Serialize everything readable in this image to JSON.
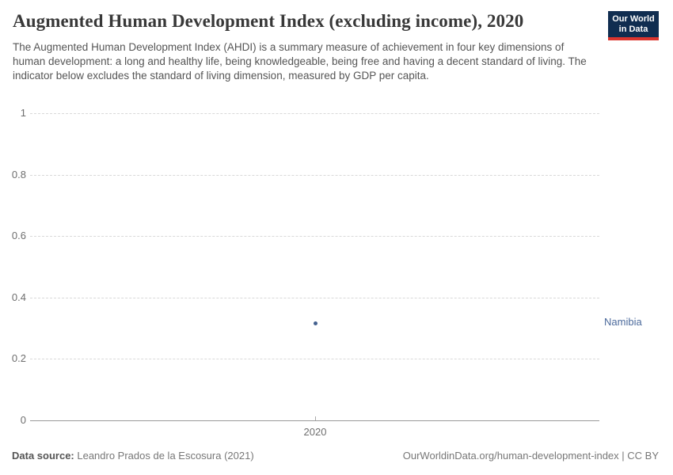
{
  "header": {
    "title": "Augmented Human Development Index (excluding income), 2020",
    "subtitle": "The Augmented Human Development Index (AHDI) is a summary measure of achievement in four key dimensions of human development: a long and healthy life, being knowledgeable, being free and having a decent standard of living. The indicator below excludes the standard of living dimension, measured by GDP per capita.",
    "logo": {
      "line1": "Our World",
      "line2": "in Data"
    }
  },
  "chart_data": {
    "type": "scatter",
    "title": "Augmented Human Development Index (excluding income), 2020",
    "x": [
      2020
    ],
    "x_ticks": [
      "2020"
    ],
    "y_ticks": [
      "1",
      "0.8",
      "0.6",
      "0.4",
      "0.2",
      "0"
    ],
    "ylim": [
      0,
      1
    ],
    "xlabel": "",
    "ylabel": "",
    "grid": "horizontal-dashed",
    "legend": "entity-label-right",
    "series": [
      {
        "name": "Namibia",
        "values": [
          0.317
        ]
      }
    ],
    "point_color": "#44618f",
    "label_color": "#4c6a9c"
  },
  "footer": {
    "source_label": "Data source:",
    "source_text": " Leandro Prados de la Escosura (2021)",
    "link_text": "OurWorldinData.org/human-development-index | CC BY"
  }
}
